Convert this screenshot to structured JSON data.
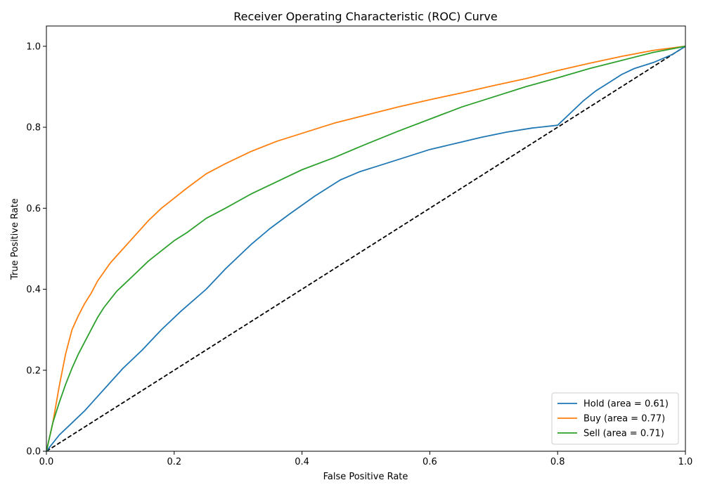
{
  "chart_data": {
    "type": "line",
    "title": "Receiver Operating Characteristic (ROC) Curve",
    "xlabel": "False Positive Rate",
    "ylabel": "True Positive Rate",
    "xlim": [
      0,
      1
    ],
    "ylim": [
      0,
      1.05
    ],
    "xticks": [
      0,
      0.2,
      0.4,
      0.6,
      0.8,
      1.0
    ],
    "xtick_labels": [
      "0.0",
      "0.2",
      "0.4",
      "0.6",
      "0.8",
      "1.0"
    ],
    "yticks": [
      0,
      0.2,
      0.4,
      0.6,
      0.8,
      1.0
    ],
    "ytick_labels": [
      "0.0",
      "0.2",
      "0.4",
      "0.6",
      "0.8",
      "1.0"
    ],
    "grid": false,
    "legend_position": "lower-right",
    "series": [
      {
        "name": "Hold (area = 0.61)",
        "color": "#1f77b4",
        "style": "solid",
        "x": [
          0,
          0.02,
          0.04,
          0.06,
          0.08,
          0.1,
          0.12,
          0.15,
          0.18,
          0.21,
          0.25,
          0.28,
          0.32,
          0.35,
          0.38,
          0.42,
          0.46,
          0.49,
          0.52,
          0.56,
          0.6,
          0.64,
          0.68,
          0.72,
          0.76,
          0.8,
          0.82,
          0.84,
          0.86,
          0.88,
          0.9,
          0.92,
          0.95,
          0.98,
          1.0
        ],
        "y": [
          0,
          0.04,
          0.07,
          0.1,
          0.135,
          0.17,
          0.205,
          0.25,
          0.3,
          0.345,
          0.4,
          0.45,
          0.51,
          0.55,
          0.585,
          0.63,
          0.67,
          0.69,
          0.705,
          0.725,
          0.745,
          0.76,
          0.775,
          0.788,
          0.798,
          0.805,
          0.835,
          0.865,
          0.89,
          0.91,
          0.93,
          0.945,
          0.96,
          0.98,
          1.0
        ]
      },
      {
        "name": "Buy (area = 0.77)",
        "color": "#ff7f0e",
        "style": "solid",
        "x": [
          0,
          0.01,
          0.02,
          0.03,
          0.04,
          0.05,
          0.06,
          0.07,
          0.08,
          0.1,
          0.12,
          0.14,
          0.16,
          0.18,
          0.2,
          0.22,
          0.25,
          0.28,
          0.32,
          0.36,
          0.4,
          0.45,
          0.5,
          0.55,
          0.6,
          0.65,
          0.7,
          0.75,
          0.8,
          0.85,
          0.9,
          0.95,
          1.0
        ],
        "y": [
          0,
          0.07,
          0.16,
          0.24,
          0.3,
          0.335,
          0.365,
          0.39,
          0.42,
          0.465,
          0.5,
          0.535,
          0.57,
          0.6,
          0.625,
          0.65,
          0.685,
          0.71,
          0.74,
          0.765,
          0.785,
          0.81,
          0.83,
          0.85,
          0.868,
          0.885,
          0.903,
          0.92,
          0.94,
          0.958,
          0.975,
          0.99,
          1.0
        ]
      },
      {
        "name": "Sell (area = 0.71)",
        "color": "#2ca02c",
        "style": "solid",
        "x": [
          0,
          0.01,
          0.02,
          0.03,
          0.04,
          0.05,
          0.06,
          0.07,
          0.08,
          0.09,
          0.1,
          0.11,
          0.12,
          0.14,
          0.16,
          0.18,
          0.2,
          0.22,
          0.25,
          0.28,
          0.32,
          0.36,
          0.4,
          0.45,
          0.5,
          0.55,
          0.6,
          0.65,
          0.7,
          0.75,
          0.8,
          0.85,
          0.9,
          0.95,
          1.0
        ],
        "y": [
          0,
          0.07,
          0.12,
          0.165,
          0.205,
          0.24,
          0.27,
          0.3,
          0.33,
          0.355,
          0.375,
          0.395,
          0.41,
          0.44,
          0.47,
          0.495,
          0.52,
          0.54,
          0.575,
          0.6,
          0.635,
          0.665,
          0.695,
          0.725,
          0.758,
          0.79,
          0.82,
          0.85,
          0.875,
          0.9,
          0.922,
          0.945,
          0.965,
          0.985,
          1.0
        ]
      },
      {
        "name": "",
        "color": "#000000",
        "style": "dashed",
        "x": [
          0,
          1
        ],
        "y": [
          0,
          1
        ]
      }
    ]
  }
}
